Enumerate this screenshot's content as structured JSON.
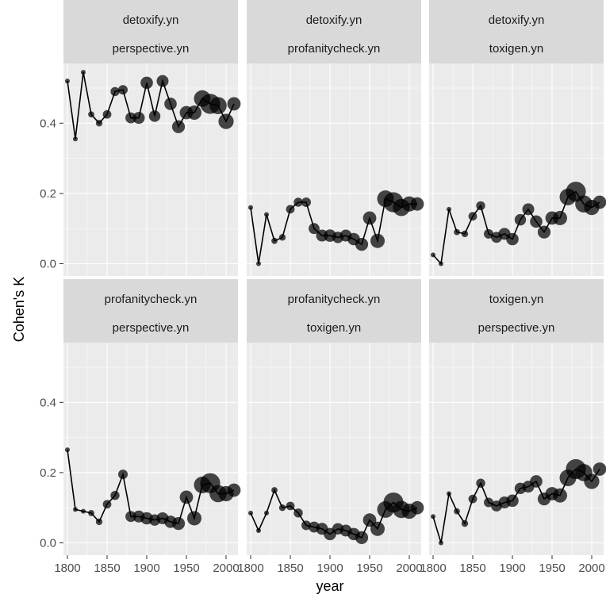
{
  "chart_data": {
    "type": "scatter",
    "facet_grid": {
      "rows": 2,
      "cols": 3
    },
    "xlabel": "year",
    "ylabel": "Cohen's K",
    "xlim": [
      1795,
      2015
    ],
    "ylim": [
      -0.035,
      0.57
    ],
    "x_ticks": [
      1800,
      1850,
      1900,
      1950,
      2000
    ],
    "x_tick_labels": [
      "1800",
      "1850",
      "1900",
      "1950",
      "2000"
    ],
    "y_ticks": [
      0.0,
      0.2,
      0.4
    ],
    "y_tick_labels": [
      "0.0",
      "0.2",
      "0.4"
    ],
    "size_encoded": true,
    "x": [
      1800,
      1810,
      1820,
      1830,
      1840,
      1850,
      1860,
      1870,
      1880,
      1890,
      1900,
      1910,
      1920,
      1930,
      1940,
      1950,
      1960,
      1970,
      1980,
      1990,
      2000,
      2010
    ],
    "point_size_scale": [
      1,
      1,
      1,
      1.3,
      1.4,
      1.8,
      1.9,
      2.0,
      2.3,
      2.5,
      2.6,
      2.4,
      2.5,
      2.6,
      2.7,
      2.8,
      3.0,
      3.5,
      4.2,
      3.6,
      3.2,
      2.8
    ],
    "panels": [
      {
        "strip1": "detoxify.yn",
        "strip2": "perspective.yn",
        "values": [
          0.52,
          0.355,
          0.545,
          0.425,
          0.4,
          0.425,
          0.49,
          0.495,
          0.415,
          0.415,
          0.515,
          0.42,
          0.52,
          0.455,
          0.39,
          0.43,
          0.43,
          0.47,
          0.455,
          0.45,
          0.405,
          0.455
        ]
      },
      {
        "strip1": "detoxify.yn",
        "strip2": "profanitycheck.yn",
        "values": [
          0.16,
          0.0,
          0.14,
          0.065,
          0.075,
          0.155,
          0.175,
          0.175,
          0.1,
          0.08,
          0.08,
          0.075,
          0.08,
          0.07,
          0.055,
          0.13,
          0.065,
          0.185,
          0.175,
          0.16,
          0.17,
          0.17
        ]
      },
      {
        "strip1": "detoxify.yn",
        "strip2": "toxigen.yn",
        "values": [
          0.025,
          0.0,
          0.155,
          0.09,
          0.085,
          0.135,
          0.165,
          0.085,
          0.075,
          0.085,
          0.07,
          0.125,
          0.155,
          0.12,
          0.09,
          0.13,
          0.13,
          0.19,
          0.205,
          0.17,
          0.16,
          0.175
        ]
      },
      {
        "strip1": "profanitycheck.yn",
        "strip2": "perspective.yn",
        "values": [
          0.265,
          0.095,
          0.09,
          0.085,
          0.06,
          0.11,
          0.135,
          0.195,
          0.075,
          0.075,
          0.07,
          0.065,
          0.07,
          0.06,
          0.055,
          0.13,
          0.07,
          0.165,
          0.17,
          0.14,
          0.14,
          0.15
        ]
      },
      {
        "strip1": "profanitycheck.yn",
        "strip2": "toxigen.yn",
        "values": [
          0.085,
          0.035,
          0.085,
          0.15,
          0.1,
          0.105,
          0.085,
          0.05,
          0.045,
          0.04,
          0.025,
          0.04,
          0.035,
          0.025,
          0.015,
          0.065,
          0.04,
          0.095,
          0.115,
          0.095,
          0.09,
          0.1
        ]
      },
      {
        "strip1": "toxigen.yn",
        "strip2": "perspective.yn",
        "values": [
          0.075,
          0.0,
          0.14,
          0.09,
          0.055,
          0.125,
          0.17,
          0.115,
          0.105,
          0.115,
          0.12,
          0.155,
          0.16,
          0.175,
          0.125,
          0.14,
          0.135,
          0.185,
          0.21,
          0.2,
          0.175,
          0.21
        ]
      }
    ]
  }
}
